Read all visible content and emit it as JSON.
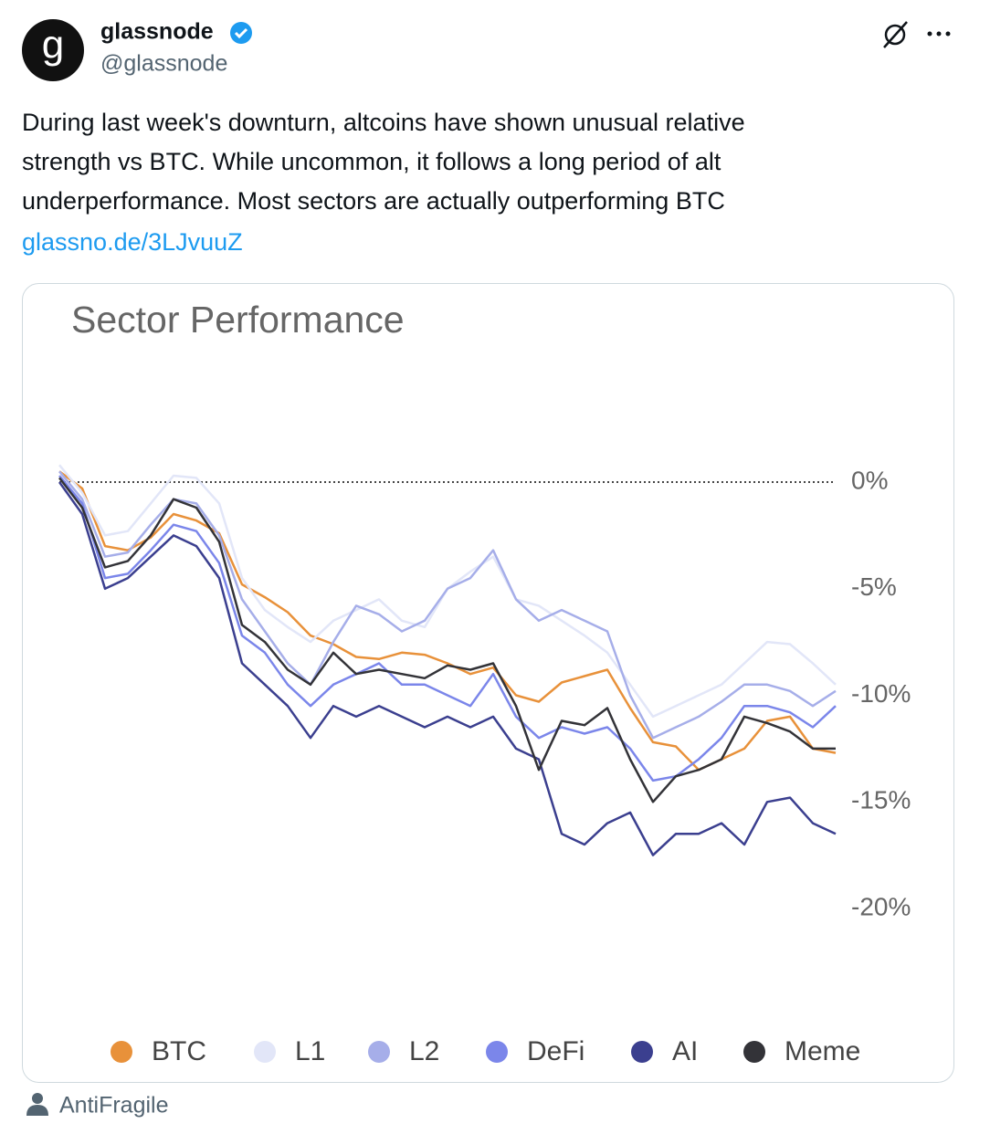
{
  "tweet": {
    "author_name": "glassnode",
    "author_handle": "@glassnode",
    "avatar_letter": "g",
    "text_lines": [
      "During last week's downturn, altcoins have shown unusual relative",
      "strength vs BTC. While uncommon, it follows a long period of alt",
      "underperformance. Most sectors are actually outperforming BTC"
    ],
    "link": "glassno.de/3LJvuuZ",
    "footer_user": "AntiFragile"
  },
  "chart_data": {
    "type": "line",
    "title": "Sector Performance",
    "ylim": [
      -20,
      1.5
    ],
    "yticks": [
      {
        "value": 0,
        "label": "0%"
      },
      {
        "value": -5,
        "label": "-5%"
      },
      {
        "value": -10,
        "label": "-10%"
      },
      {
        "value": -15,
        "label": "-15%"
      },
      {
        "value": -20,
        "label": "-20%"
      }
    ],
    "series": [
      {
        "name": "BTC",
        "color": "#e8913a",
        "values": [
          0.5,
          -0.3,
          -3,
          -3.2,
          -2.6,
          -1.5,
          -1.8,
          -2.4,
          -4.8,
          -5.4,
          -6.1,
          -7.2,
          -7.6,
          -8.2,
          -8.3,
          -8.0,
          -8.1,
          -8.5,
          -9.0,
          -8.7,
          -10.0,
          -10.3,
          -9.4,
          -9.1,
          -8.8,
          -10.6,
          -12.2,
          -12.4,
          -13.5,
          -13.0,
          -12.5,
          -11.2,
          -11.0,
          -12.5,
          -12.7
        ]
      },
      {
        "name": "L1",
        "color": "#e2e6f8",
        "values": [
          0.8,
          -0.5,
          -2.5,
          -2.3,
          -1.0,
          0.3,
          0.2,
          -1.0,
          -4.5,
          -6,
          -6.8,
          -7.5,
          -6.5,
          -6.0,
          -5.5,
          -6.5,
          -6.8,
          -5.0,
          -4.2,
          -3.5,
          -5.5,
          -5.8,
          -6.5,
          -7.2,
          -8.0,
          -9.5,
          -11.0,
          -10.5,
          -10.0,
          -9.5,
          -8.5,
          -7.5,
          -7.6,
          -8.5,
          -9.5
        ]
      },
      {
        "name": "L2",
        "color": "#a6aee9",
        "values": [
          0.5,
          -0.8,
          -3.5,
          -3.3,
          -2.0,
          -0.8,
          -1.0,
          -2.5,
          -5.5,
          -7.0,
          -8.5,
          -9.5,
          -7.5,
          -5.8,
          -6.2,
          -7.0,
          -6.5,
          -5.0,
          -4.5,
          -3.2,
          -5.5,
          -6.5,
          -6.0,
          -6.5,
          -7.0,
          -10.0,
          -12.0,
          -11.5,
          -11.0,
          -10.3,
          -9.5,
          -9.5,
          -9.8,
          -10.5,
          -9.8
        ]
      },
      {
        "name": "DeFi",
        "color": "#7b86ea",
        "values": [
          0.3,
          -1.0,
          -4.5,
          -4.3,
          -3.2,
          -2.0,
          -2.3,
          -3.8,
          -7.2,
          -8.0,
          -9.5,
          -10.5,
          -9.5,
          -9.0,
          -8.5,
          -9.5,
          -9.5,
          -10.0,
          -10.5,
          -9.0,
          -11.0,
          -12.0,
          -11.5,
          -11.8,
          -11.5,
          -12.5,
          -14.0,
          -13.8,
          -13.0,
          -12.0,
          -10.5,
          -10.5,
          -10.8,
          -11.5,
          -10.5
        ]
      },
      {
        "name": "AI",
        "color": "#3b3f8f",
        "values": [
          0,
          -1.5,
          -5.0,
          -4.5,
          -3.5,
          -2.5,
          -3.0,
          -4.5,
          -8.5,
          -9.5,
          -10.5,
          -12.0,
          -10.5,
          -11.0,
          -10.5,
          -11.0,
          -11.5,
          -11.0,
          -11.5,
          -11.0,
          -12.5,
          -13.0,
          -16.5,
          -17.0,
          -16.0,
          -15.5,
          -17.5,
          -16.5,
          -16.5,
          -16.0,
          -17.0,
          -15.0,
          -14.8,
          -16.0,
          -16.5
        ]
      },
      {
        "name": "Meme",
        "color": "#333338",
        "values": [
          0.2,
          -1.2,
          -4.0,
          -3.7,
          -2.5,
          -0.8,
          -1.2,
          -2.8,
          -6.7,
          -7.5,
          -8.8,
          -9.5,
          -8.0,
          -9.0,
          -8.8,
          -9.0,
          -9.2,
          -8.6,
          -8.8,
          -8.5,
          -10.5,
          -13.5,
          -11.2,
          -11.4,
          -10.6,
          -13.0,
          -15.0,
          -13.8,
          -13.5,
          -13.0,
          -11.0,
          -11.3,
          -11.7,
          -12.5,
          -12.5
        ]
      }
    ]
  }
}
